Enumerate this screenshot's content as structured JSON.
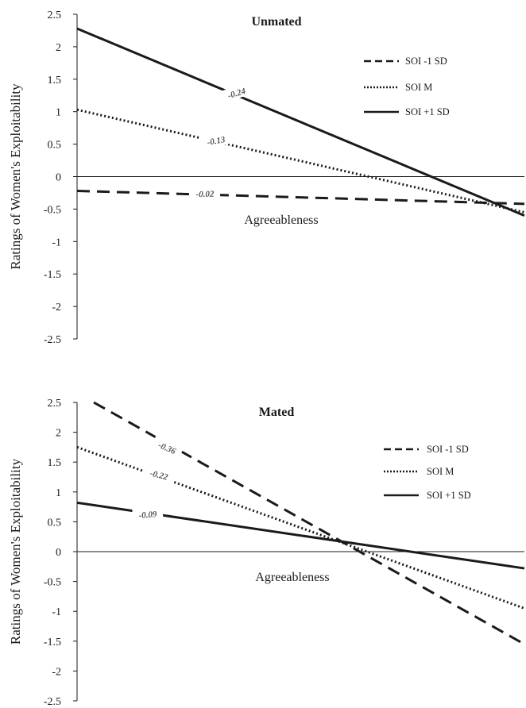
{
  "chart_data": [
    {
      "type": "line",
      "title": "Unmated",
      "ylabel": "Ratings of Women's Exploitability",
      "xlabel": "Agreeableness",
      "ylim": [
        -2.5,
        2.5
      ],
      "yticks": [
        "2.5",
        "2",
        "1.5",
        "1",
        "0.5",
        "0",
        "-0.5",
        "-1",
        "-1.5",
        "-2",
        "-2.5"
      ],
      "legend_position": "top-right",
      "x": [
        -1,
        1
      ],
      "series": [
        {
          "name": "SOI -1 SD",
          "style": "dashed",
          "values": [
            -0.22,
            -0.42
          ],
          "slope_label": "-0.02"
        },
        {
          "name": "SOI M",
          "style": "dotted",
          "values": [
            1.03,
            -0.55
          ],
          "slope_label": "-0.13"
        },
        {
          "name": "SOI +1 SD",
          "style": "solid",
          "values": [
            2.28,
            -0.6
          ],
          "slope_label": "-0.24"
        }
      ]
    },
    {
      "type": "line",
      "title": "Mated",
      "ylabel": "Ratings of Women's Exploitability",
      "xlabel": "Agreeableness",
      "ylim": [
        -2.5,
        2.5
      ],
      "yticks": [
        "2.5",
        "2",
        "1.5",
        "1",
        "0.5",
        "0",
        "-0.5",
        "-1",
        "-1.5",
        "-2",
        "-2.5"
      ],
      "legend_position": "top-right",
      "x": [
        -1,
        1
      ],
      "series": [
        {
          "name": "SOI -1 SD",
          "style": "dashed",
          "values": [
            2.5,
            -1.55
          ],
          "slope_label": "-0.36"
        },
        {
          "name": "SOI M",
          "style": "dotted",
          "values": [
            1.75,
            -0.95
          ],
          "slope_label": "-0.22"
        },
        {
          "name": "SOI +1 SD",
          "style": "solid",
          "values": [
            0.82,
            -0.28
          ],
          "slope_label": "-0.09"
        }
      ]
    }
  ]
}
